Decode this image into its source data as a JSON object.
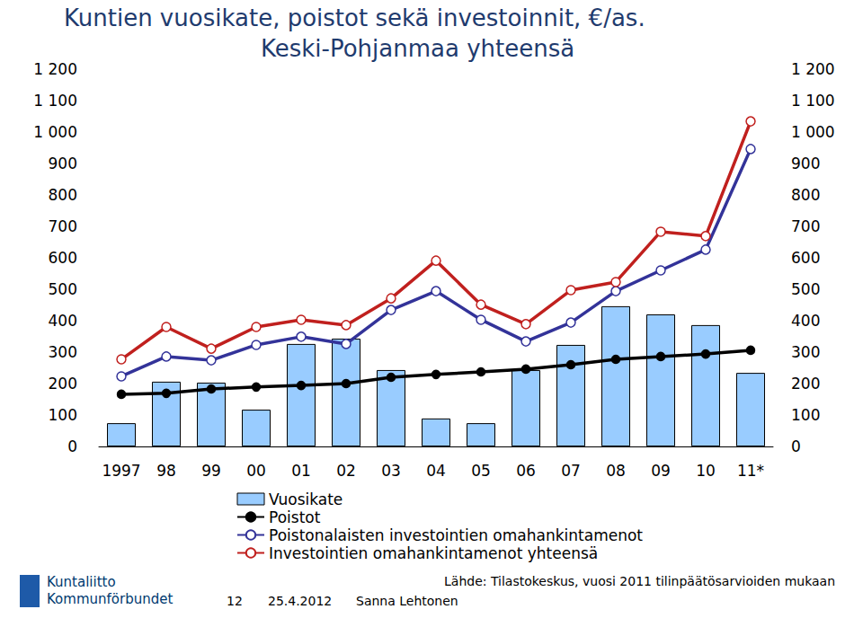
{
  "chart_data": {
    "type": "bar",
    "title": "Kuntien vuosikate, poistot sekä investoinnit, €/as.",
    "subtitle": "Keski-Pohjanmaa yhteensä",
    "categories": [
      "1997",
      "98",
      "99",
      "00",
      "01",
      "02",
      "03",
      "04",
      "05",
      "06",
      "07",
      "08",
      "09",
      "10",
      "11*"
    ],
    "series": [
      {
        "name": "Vuosikate",
        "type": "bar",
        "color": "#99ccff",
        "values": [
          74,
          206,
          203,
          117,
          326,
          343,
          243,
          89,
          74,
          243,
          323,
          446,
          420,
          386,
          234
        ]
      },
      {
        "name": "Poistot",
        "type": "line",
        "color": "#000000",
        "marker": "filled_circle",
        "values": [
          166,
          169,
          183,
          189,
          194,
          200,
          220,
          229,
          237,
          246,
          260,
          277,
          286,
          294,
          306
        ]
      },
      {
        "name": "Poistonalaisten investointien omahankintamenot",
        "type": "line",
        "color": "#333399",
        "marker": "open_circle",
        "values": [
          223,
          286,
          274,
          323,
          349,
          326,
          434,
          494,
          403,
          334,
          394,
          494,
          560,
          626,
          946
        ]
      },
      {
        "name": "Investointien omahankintamenot yhteensä",
        "type": "line",
        "color": "#c0201e",
        "marker": "open_circle",
        "values": [
          277,
          380,
          311,
          380,
          403,
          386,
          471,
          591,
          451,
          389,
          497,
          523,
          683,
          669,
          1034
        ]
      }
    ],
    "ylim": [
      0,
      1200
    ],
    "yticks": [
      0,
      100,
      200,
      300,
      400,
      500,
      600,
      700,
      800,
      900,
      1000,
      1100,
      {
        "value": 1000,
        "label": "1 000"
      },
      {
        "value": 1100,
        "label": "1 100"
      },
      {
        "value": 1200,
        "label": "1 200"
      }
    ],
    "y2lim": [
      0,
      1200
    ],
    "y2ticks": [
      0,
      100,
      200,
      300,
      400,
      500,
      600,
      700,
      800,
      900,
      {
        "value": 1000,
        "label": "1 000"
      },
      {
        "value": 1100,
        "label": "1 100"
      },
      {
        "value": 1200,
        "label": "1 200"
      }
    ],
    "grid": false,
    "legend": "bottom",
    "annotations": [
      "Lähde: Tilastokeskus, vuosi 2011 tilinpäätösarvioiden mukaan",
      "12",
      "25.4.2012",
      "Sanna Lehtonen",
      "Kuntaliitto",
      "Kommunförbundet"
    ]
  }
}
